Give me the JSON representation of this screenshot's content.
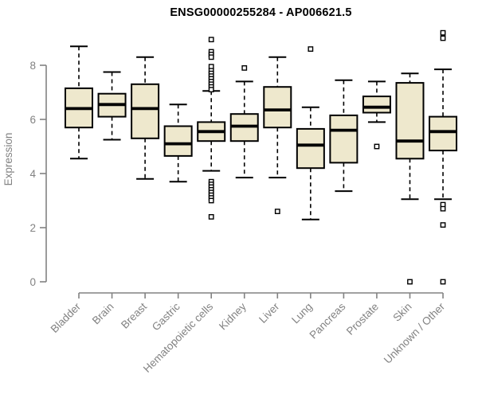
{
  "chart_data": {
    "type": "boxplot",
    "title": "ENSG00000255284 - AP006621.5",
    "ylabel": "Expression",
    "xlabel": "",
    "ylim": [
      0,
      9.3
    ],
    "yticks": [
      0,
      2,
      4,
      6,
      8
    ],
    "grid": false,
    "legend": "none",
    "box_fill": "#EEE8CD",
    "box_stroke": "#000000",
    "median_color": "#000000",
    "axis_color": "#828282",
    "label_color": "#828282",
    "title_color": "#000000",
    "categories": [
      "Bladder",
      "Brain",
      "Breast",
      "Gastric",
      "Hematopoietic cells",
      "Kidney",
      "Liver",
      "Lung",
      "Pancreas",
      "Prostate",
      "Skin",
      "Unknown / Other"
    ],
    "series": [
      {
        "category": "Bladder",
        "low": 4.55,
        "q1": 5.7,
        "median": 6.4,
        "q3": 7.15,
        "high": 8.7,
        "outliers": []
      },
      {
        "category": "Brain",
        "low": 5.25,
        "q1": 6.1,
        "median": 6.55,
        "q3": 6.95,
        "high": 7.75,
        "outliers": []
      },
      {
        "category": "Breast",
        "low": 3.8,
        "q1": 5.3,
        "median": 6.4,
        "q3": 7.3,
        "high": 8.3,
        "outliers": []
      },
      {
        "category": "Gastric",
        "low": 3.7,
        "q1": 4.65,
        "median": 5.1,
        "q3": 5.75,
        "high": 6.55,
        "outliers": []
      },
      {
        "category": "Hematopoietic cells",
        "low": 4.1,
        "q1": 5.2,
        "median": 5.55,
        "q3": 5.9,
        "high": 7.05,
        "outliers": [
          8.95,
          8.5,
          8.4,
          8.3,
          7.95,
          7.8,
          7.7,
          7.6,
          7.5,
          7.4,
          7.3,
          7.2,
          7.1,
          3.7,
          3.6,
          3.5,
          3.4,
          3.3,
          3.2,
          3.1,
          3.0,
          2.4
        ]
      },
      {
        "category": "Kidney",
        "low": 3.85,
        "q1": 5.2,
        "median": 5.75,
        "q3": 6.2,
        "high": 7.4,
        "outliers": [
          7.9
        ]
      },
      {
        "category": "Liver",
        "low": 3.85,
        "q1": 5.7,
        "median": 6.35,
        "q3": 7.2,
        "high": 8.3,
        "outliers": [
          2.6
        ]
      },
      {
        "category": "Lung",
        "low": 2.3,
        "q1": 4.2,
        "median": 5.05,
        "q3": 5.65,
        "high": 6.45,
        "outliers": [
          8.6
        ]
      },
      {
        "category": "Pancreas",
        "low": 3.35,
        "q1": 4.4,
        "median": 5.6,
        "q3": 6.15,
        "high": 7.45,
        "outliers": []
      },
      {
        "category": "Prostate",
        "low": 5.9,
        "q1": 6.25,
        "median": 6.45,
        "q3": 6.85,
        "high": 7.4,
        "outliers": [
          5.0
        ]
      },
      {
        "category": "Skin",
        "low": 3.05,
        "q1": 4.55,
        "median": 5.2,
        "q3": 7.35,
        "high": 7.7,
        "outliers": [
          0
        ]
      },
      {
        "category": "Unknown / Other",
        "low": 3.05,
        "q1": 4.85,
        "median": 5.55,
        "q3": 6.1,
        "high": 7.85,
        "outliers": [
          9.2,
          9.0,
          2.85,
          2.7,
          2.1,
          0
        ]
      }
    ]
  }
}
